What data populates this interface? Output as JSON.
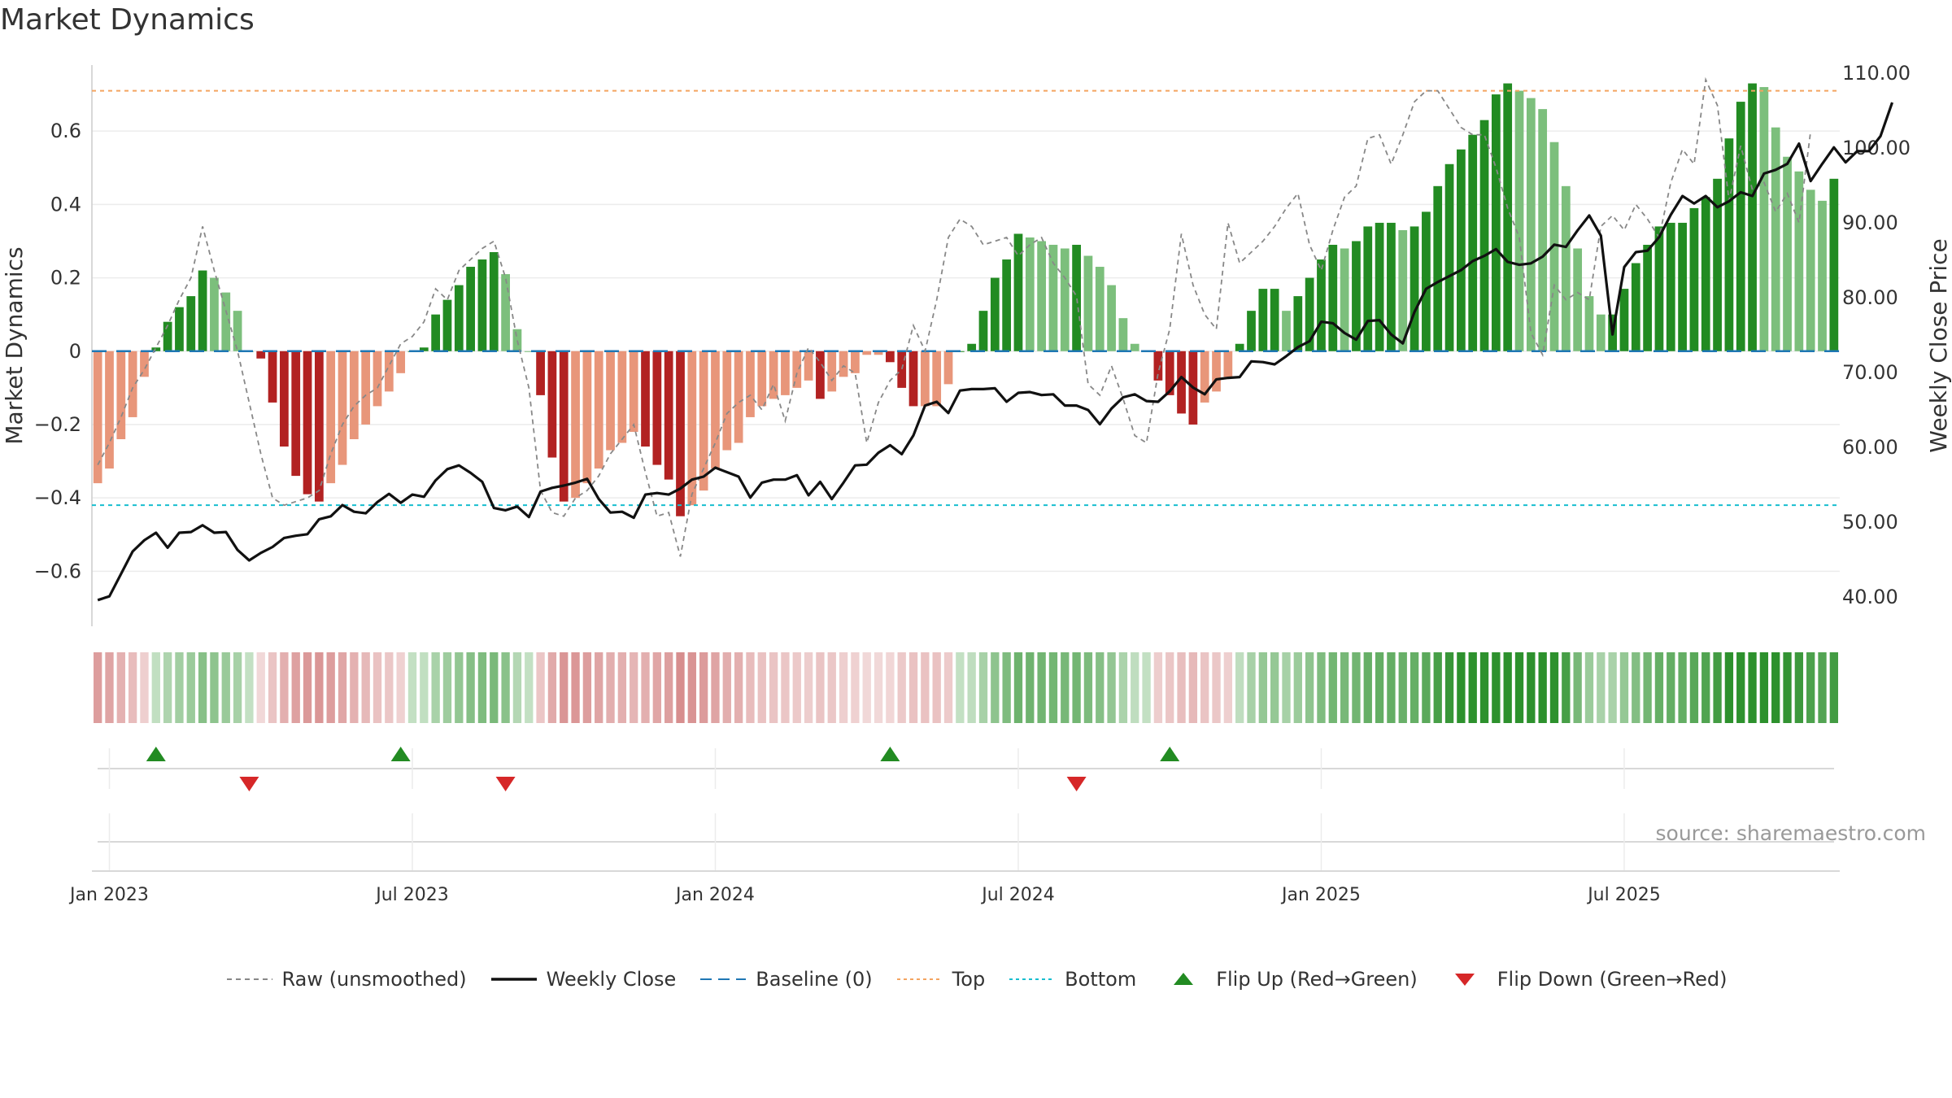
{
  "title": "Market Dynamics",
  "source_text": "source: sharemaestro.com",
  "chart_data": {
    "type": "bar",
    "y_left_label": "Market Dynamics",
    "y_right_label": "Weekly Close Price",
    "y_left_ticks": [
      0.6,
      0.4,
      0.2,
      0,
      -0.2,
      -0.4,
      -0.6
    ],
    "y_left_tick_labels": [
      "0.6",
      "0.4",
      "0.2",
      "0",
      "−0.2",
      "−0.4",
      "−0.6"
    ],
    "y_left_range": [
      -0.75,
      0.78
    ],
    "y_right_ticks": [
      110,
      100,
      90,
      80,
      70,
      60,
      50,
      40
    ],
    "y_right_tick_labels": [
      "110.00",
      "100.00",
      "90.00",
      "80.00",
      "70.00",
      "60.00",
      "50.00",
      "40.00"
    ],
    "y_right_range": [
      36,
      111
    ],
    "x_tick_labels": [
      "Jan 2023",
      "Jul 2023",
      "Jan 2024",
      "Jul 2024",
      "Jan 2025",
      "Jul 2025"
    ],
    "x_tick_weeks": [
      2,
      28,
      54,
      80,
      106,
      132
    ],
    "top_level": 0.71,
    "bottom_level": -0.42,
    "baseline": 0,
    "colors": {
      "strong_green": "#228B22",
      "light_green": "#7CBF7C",
      "strong_red": "#B22222",
      "light_red": "#E8967A",
      "close_line": "#111111",
      "raw_line": "#888888",
      "baseline": "#1f77b4",
      "top": "#F4A460",
      "bottom": "#17BECF",
      "flip_up": "#228B22",
      "flip_down": "#D62728"
    },
    "bar_values": [
      -0.36,
      -0.32,
      -0.24,
      -0.18,
      -0.07,
      0.01,
      0.08,
      0.12,
      0.15,
      0.22,
      0.2,
      0.16,
      0.11,
      0.0,
      -0.02,
      -0.14,
      -0.26,
      -0.34,
      -0.39,
      -0.41,
      -0.36,
      -0.31,
      -0.24,
      -0.2,
      -0.15,
      -0.11,
      -0.06,
      0.0,
      0.01,
      0.1,
      0.14,
      0.18,
      0.23,
      0.25,
      0.27,
      0.21,
      0.06,
      0.0,
      -0.12,
      -0.29,
      -0.41,
      -0.4,
      -0.36,
      -0.32,
      -0.27,
      -0.25,
      -0.22,
      -0.26,
      -0.31,
      -0.35,
      -0.45,
      -0.42,
      -0.38,
      -0.32,
      -0.27,
      -0.25,
      -0.18,
      -0.15,
      -0.13,
      -0.12,
      -0.1,
      -0.08,
      -0.13,
      -0.11,
      -0.07,
      -0.06,
      -0.01,
      -0.01,
      -0.03,
      -0.1,
      -0.15,
      -0.15,
      -0.15,
      -0.09,
      0.0,
      0.02,
      0.11,
      0.2,
      0.25,
      0.32,
      0.31,
      0.3,
      0.29,
      0.28,
      0.29,
      0.26,
      0.23,
      0.18,
      0.09,
      0.02,
      0.0,
      -0.08,
      -0.12,
      -0.17,
      -0.2,
      -0.14,
      -0.11,
      -0.07,
      0.02,
      0.11,
      0.17,
      0.17,
      0.11,
      0.15,
      0.2,
      0.25,
      0.29,
      0.28,
      0.3,
      0.34,
      0.35,
      0.35,
      0.33,
      0.34,
      0.38,
      0.45,
      0.51,
      0.55,
      0.59,
      0.63,
      0.7,
      0.73,
      0.71,
      0.69,
      0.66,
      0.57,
      0.45,
      0.28,
      0.15,
      0.1,
      0.1,
      0.17,
      0.24,
      0.29,
      0.34,
      0.35,
      0.35,
      0.39,
      0.42,
      0.47,
      0.58,
      0.68,
      0.73,
      0.72,
      0.61,
      0.53,
      0.49,
      0.44,
      0.41,
      0.47
    ],
    "close_values": [
      39.5,
      40.0,
      43.0,
      46.0,
      47.5,
      48.5,
      46.5,
      48.5,
      48.6,
      49.5,
      48.5,
      48.6,
      46.2,
      44.8,
      45.8,
      46.6,
      47.8,
      48.1,
      48.3,
      50.3,
      50.7,
      52.2,
      51.3,
      51.1,
      52.6,
      53.7,
      52.5,
      53.6,
      53.3,
      55.5,
      57.0,
      57.5,
      56.5,
      55.3,
      51.8,
      51.5,
      52.0,
      50.6,
      54.0,
      54.5,
      54.8,
      55.2,
      55.7,
      53.0,
      51.2,
      51.3,
      50.5,
      53.6,
      53.8,
      53.6,
      54.4,
      55.6,
      56.0,
      57.2,
      56.6,
      56.0,
      53.2,
      55.2,
      55.6,
      55.6,
      56.2,
      53.5,
      55.3,
      53.0,
      55.2,
      57.5,
      57.6,
      59.2,
      60.2,
      59.0,
      61.5,
      65.5,
      66.0,
      64.5,
      67.5,
      67.7,
      67.7,
      67.8,
      66.0,
      67.2,
      67.3,
      66.9,
      67.0,
      65.5,
      65.5,
      64.9,
      63.0,
      65.1,
      66.6,
      67.0,
      66.1,
      66.0,
      67.4,
      69.3,
      67.9,
      67.0,
      69.0,
      69.2,
      69.3,
      71.4,
      71.3,
      71.0,
      72.1,
      73.3,
      74.1,
      76.7,
      76.5,
      75.2,
      74.3,
      76.8,
      76.9,
      75.0,
      73.8,
      78.0,
      81.1,
      82.0,
      82.8,
      83.6,
      84.8,
      85.5,
      86.4,
      84.7,
      84.3,
      84.5,
      85.4,
      87.0,
      86.7,
      88.9,
      90.9,
      88.2,
      75.0,
      84.0,
      86.0,
      86.2,
      88.0,
      91.0,
      93.5,
      92.5,
      93.5,
      92.0,
      92.8,
      94.0,
      93.5,
      96.5,
      97.0,
      97.8,
      100.5,
      95.5,
      97.8,
      100.0,
      98.0,
      99.5,
      99.5,
      101.5,
      106.0
    ],
    "raw_values": [
      -0.31,
      -0.25,
      -0.18,
      -0.1,
      -0.05,
      0.01,
      0.07,
      0.14,
      0.2,
      0.34,
      0.22,
      0.11,
      0.0,
      -0.14,
      -0.28,
      -0.4,
      -0.42,
      -0.41,
      -0.4,
      -0.38,
      -0.28,
      -0.2,
      -0.15,
      -0.12,
      -0.1,
      -0.04,
      0.02,
      0.04,
      0.08,
      0.17,
      0.14,
      0.22,
      0.25,
      0.28,
      0.3,
      0.2,
      0.03,
      -0.1,
      -0.38,
      -0.44,
      -0.45,
      -0.4,
      -0.38,
      -0.34,
      -0.28,
      -0.24,
      -0.2,
      -0.33,
      -0.45,
      -0.44,
      -0.56,
      -0.39,
      -0.32,
      -0.25,
      -0.17,
      -0.14,
      -0.12,
      -0.16,
      -0.09,
      -0.19,
      -0.06,
      0.01,
      -0.03,
      -0.08,
      -0.04,
      -0.06,
      -0.25,
      -0.14,
      -0.08,
      -0.05,
      0.07,
      0.0,
      0.14,
      0.31,
      0.36,
      0.34,
      0.29,
      0.3,
      0.31,
      0.26,
      0.29,
      0.31,
      0.24,
      0.2,
      0.15,
      -0.09,
      -0.12,
      -0.04,
      -0.13,
      -0.23,
      -0.25,
      -0.06,
      0.06,
      0.32,
      0.18,
      0.1,
      0.06,
      0.35,
      0.24,
      0.27,
      0.3,
      0.34,
      0.39,
      0.43,
      0.29,
      0.22,
      0.33,
      0.42,
      0.45,
      0.58,
      0.59,
      0.51,
      0.59,
      0.68,
      0.71,
      0.71,
      0.66,
      0.61,
      0.59,
      0.59,
      0.5,
      0.39,
      0.31,
      0.05,
      -0.01,
      0.18,
      0.14,
      0.16,
      0.14,
      0.34,
      0.37,
      0.33,
      0.4,
      0.36,
      0.31,
      0.46,
      0.55,
      0.51,
      0.74,
      0.67,
      0.41,
      0.56,
      0.44,
      0.46,
      0.38,
      0.43,
      0.35,
      0.6
    ],
    "flip_up_weeks": [
      5,
      26,
      68,
      92
    ],
    "flip_down_weeks": [
      13,
      35,
      84
    ]
  },
  "legend": [
    {
      "label": "Raw (unsmoothed)",
      "kind": "dashed",
      "color": "#888888"
    },
    {
      "label": "Weekly Close",
      "kind": "solid",
      "color": "#111111"
    },
    {
      "label": "Baseline (0)",
      "kind": "longdash",
      "color": "#1f77b4"
    },
    {
      "label": "Top",
      "kind": "dotted",
      "color": "#F4A460"
    },
    {
      "label": "Bottom",
      "kind": "dotted",
      "color": "#17BECF"
    },
    {
      "label": "Flip Up (Red→Green)",
      "kind": "tri-up",
      "color": "#228B22"
    },
    {
      "label": "Flip Down (Green→Red)",
      "kind": "tri-down",
      "color": "#D62728"
    }
  ]
}
